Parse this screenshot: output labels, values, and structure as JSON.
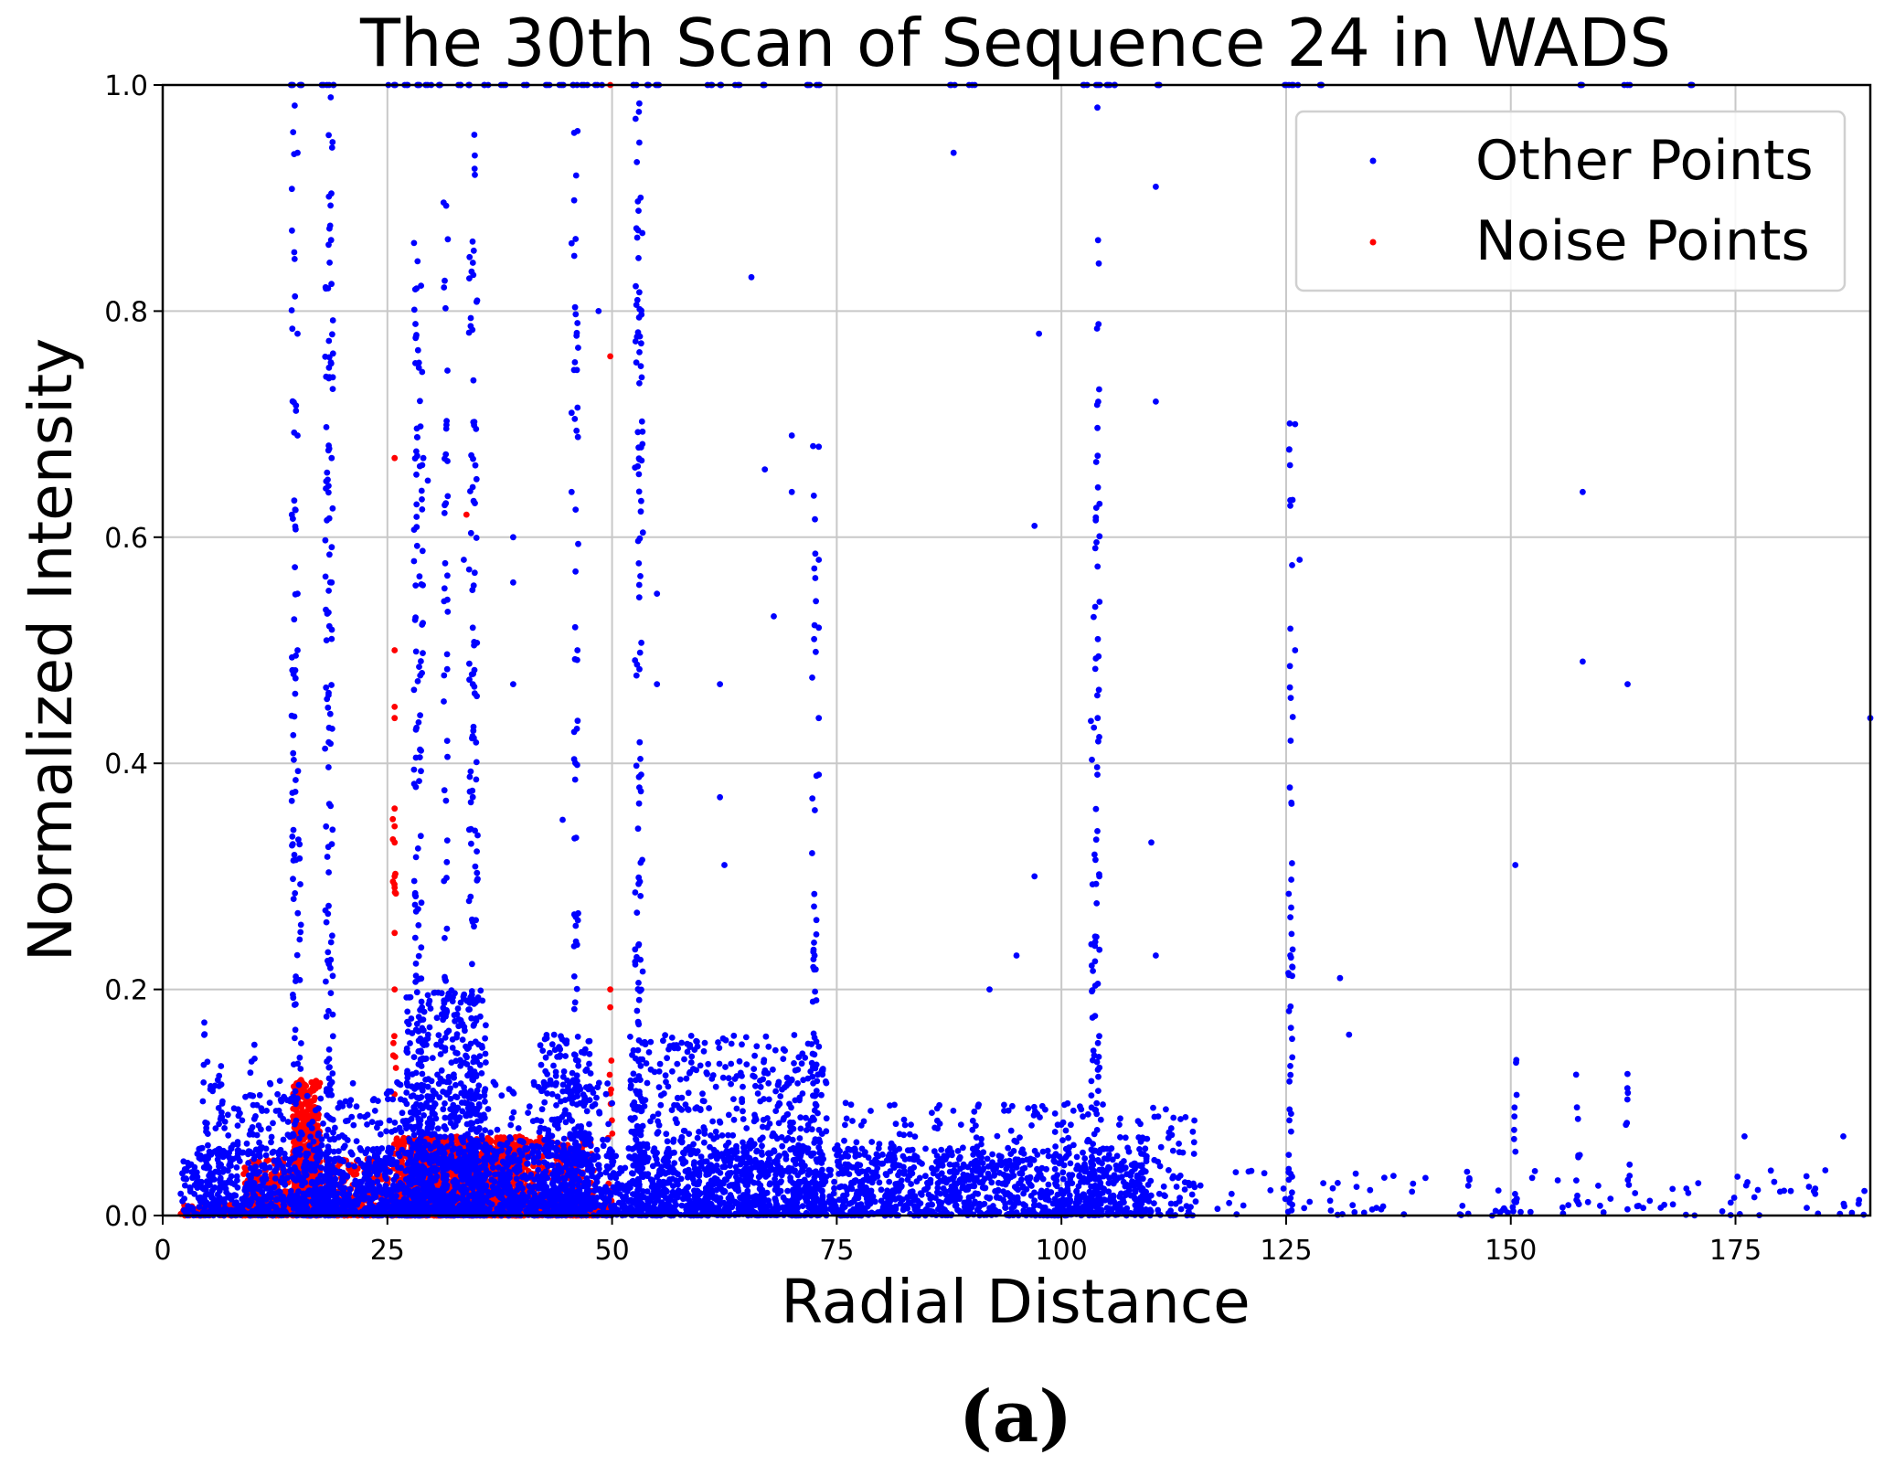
{
  "chart_data": {
    "type": "scatter",
    "title": "The 30th Scan of Sequence 24 in WADS",
    "xlabel": "Radial Distance",
    "ylabel": "Normalized Intensity",
    "xlim": [
      0,
      190
    ],
    "ylim": [
      0.0,
      1.0
    ],
    "xticks": [
      "0",
      "25",
      "50",
      "75",
      "100",
      "125",
      "150",
      "175"
    ],
    "xtick_values": [
      0,
      25,
      50,
      75,
      100,
      125,
      150,
      175
    ],
    "yticks": [
      "0.0",
      "0.2",
      "0.4",
      "0.6",
      "0.8",
      "1.0"
    ],
    "ytick_values": [
      0.0,
      0.2,
      0.4,
      0.6,
      0.8,
      1.0
    ],
    "grid": true,
    "legend_position": "top-right",
    "series": [
      {
        "name": "Other Points",
        "color": "#0000ff",
        "clusters": [
          {
            "x": [
              2,
              110
            ],
            "y_max": 0.06,
            "count": 2600
          },
          {
            "x": [
              4,
              50
            ],
            "y_max": 0.12,
            "count": 900
          },
          {
            "x": [
              27,
              36
            ],
            "y_max": 0.2,
            "count": 600
          },
          {
            "x": [
              42,
              48
            ],
            "y_max": 0.16,
            "count": 250
          },
          {
            "x": [
              52,
              74
            ],
            "y_max": 0.16,
            "count": 800
          },
          {
            "x": [
              75,
              115
            ],
            "y_max": 0.1,
            "count": 450
          },
          {
            "x": [
              115,
              190
            ],
            "y_max": 0.04,
            "count": 120
          }
        ],
        "columns": [
          {
            "x": 4.8,
            "y_max": 0.18
          },
          {
            "x": 6.5,
            "y_max": 0.15
          },
          {
            "x": 10,
            "y_max": 0.17
          },
          {
            "x": 14.6,
            "y_max": 1.0
          },
          {
            "x": 15.2,
            "y_max": 0.4
          },
          {
            "x": 18.3,
            "y_max": 0.83
          },
          {
            "x": 18.7,
            "y_max": 1.0
          },
          {
            "x": 28.2,
            "y_max": 0.87
          },
          {
            "x": 28.7,
            "y_max": 0.83
          },
          {
            "x": 31.5,
            "y_max": 0.9
          },
          {
            "x": 34.3,
            "y_max": 0.9
          },
          {
            "x": 34.8,
            "y_max": 0.96
          },
          {
            "x": 46,
            "y_max": 0.96
          },
          {
            "x": 52.8,
            "y_max": 1.0
          },
          {
            "x": 53.2,
            "y_max": 0.95
          },
          {
            "x": 72.5,
            "y_max": 0.7
          },
          {
            "x": 103.5,
            "y_max": 0.54
          },
          {
            "x": 104,
            "y_max": 0.88
          },
          {
            "x": 125.5,
            "y_max": 0.72
          },
          {
            "x": 150.5,
            "y_max": 0.18
          },
          {
            "x": 157.5,
            "y_max": 0.13
          },
          {
            "x": 163,
            "y_max": 0.14
          }
        ],
        "outliers": [
          [
            15,
            0.94
          ],
          [
            15,
            0.78
          ],
          [
            15,
            0.69
          ],
          [
            15,
            0.55
          ],
          [
            15,
            0.5
          ],
          [
            18.5,
            0.75
          ],
          [
            18.8,
            0.67
          ],
          [
            18.8,
            0.56
          ],
          [
            18.8,
            0.51
          ],
          [
            28.5,
            0.75
          ],
          [
            29,
            0.67
          ],
          [
            29.5,
            0.65
          ],
          [
            31.5,
            0.63
          ],
          [
            33.5,
            0.58
          ],
          [
            34.5,
            0.52
          ],
          [
            34.5,
            0.47
          ],
          [
            39,
            0.6
          ],
          [
            39,
            0.56
          ],
          [
            39,
            0.47
          ],
          [
            44.5,
            0.35
          ],
          [
            45.5,
            0.86
          ],
          [
            45.5,
            0.71
          ],
          [
            45.5,
            0.64
          ],
          [
            46,
            0.92
          ],
          [
            48.5,
            0.8
          ],
          [
            55,
            0.55
          ],
          [
            55,
            0.47
          ],
          [
            62,
            0.47
          ],
          [
            62,
            0.37
          ],
          [
            62.5,
            0.31
          ],
          [
            65.5,
            0.83
          ],
          [
            67,
            0.66
          ],
          [
            68,
            0.53
          ],
          [
            70,
            0.69
          ],
          [
            70,
            0.64
          ],
          [
            73,
            0.68
          ],
          [
            73,
            0.58
          ],
          [
            73,
            0.52
          ],
          [
            73,
            0.44
          ],
          [
            73,
            0.39
          ],
          [
            88,
            0.94
          ],
          [
            92,
            0.2
          ],
          [
            95,
            0.23
          ],
          [
            97,
            0.61
          ],
          [
            97.5,
            0.78
          ],
          [
            97,
            0.3
          ],
          [
            104,
            0.98
          ],
          [
            104,
            0.39
          ],
          [
            104,
            0.34
          ],
          [
            110,
            0.33
          ],
          [
            110.5,
            0.72
          ],
          [
            110.5,
            0.91
          ],
          [
            110.5,
            0.23
          ],
          [
            126.5,
            0.58
          ],
          [
            126,
            0.5
          ],
          [
            125.5,
            0.42
          ],
          [
            126,
            0.7
          ],
          [
            131,
            0.21
          ],
          [
            132,
            0.16
          ],
          [
            150.5,
            0.31
          ],
          [
            158,
            0.64
          ],
          [
            158,
            0.49
          ],
          [
            163,
            0.47
          ],
          [
            190,
            0.44
          ],
          [
            185,
            0.04
          ],
          [
            187,
            0.07
          ],
          [
            176,
            0.07
          ]
        ],
        "top_row": [
          14.5,
          15.3,
          18,
          18.8,
          25.5,
          27,
          28.5,
          29.5,
          31,
          33,
          34,
          36,
          38,
          40.5,
          43,
          44.5,
          46,
          47,
          48.5,
          52.5,
          54,
          55,
          61,
          62,
          64,
          67,
          72,
          73,
          88,
          90,
          102.5,
          104,
          105,
          106,
          110.5,
          125,
          126,
          129,
          158,
          163,
          170
        ]
      },
      {
        "name": "Noise Points",
        "color": "#ff0000",
        "clusters": [
          {
            "x": [
              2,
              50
            ],
            "y_max": 0.01,
            "count": 900
          },
          {
            "x": [
              14.5,
              17.5
            ],
            "y_max": 0.12,
            "count": 700
          },
          {
            "x": [
              9,
              14
            ],
            "y_max": 0.05,
            "count": 180
          },
          {
            "x": [
              18,
              26
            ],
            "y_max": 0.05,
            "count": 200
          },
          {
            "x": [
              26,
              40
            ],
            "y_max": 0.07,
            "count": 1300
          },
          {
            "x": [
              35,
              48
            ],
            "y_max": 0.07,
            "count": 500
          }
        ],
        "columns": [
          {
            "x": 25.8,
            "y_max": 0.36
          },
          {
            "x": 33.8,
            "y_max": 0.1
          },
          {
            "x": 49.8,
            "y_max": 0.2
          }
        ],
        "outliers": [
          [
            25.8,
            0.67
          ],
          [
            25.8,
            0.5
          ],
          [
            25.8,
            0.45
          ],
          [
            25.8,
            0.44
          ],
          [
            25.8,
            0.36
          ],
          [
            25.8,
            0.33
          ],
          [
            25.8,
            0.3
          ],
          [
            25.8,
            0.29
          ],
          [
            25.8,
            0.25
          ],
          [
            25.8,
            0.2
          ],
          [
            33.8,
            0.62
          ],
          [
            49.8,
            0.76
          ],
          [
            49.8,
            0.2
          ],
          [
            25.8,
            1.0
          ],
          [
            49.8,
            1.0
          ]
        ]
      }
    ]
  },
  "caption": "(a)"
}
